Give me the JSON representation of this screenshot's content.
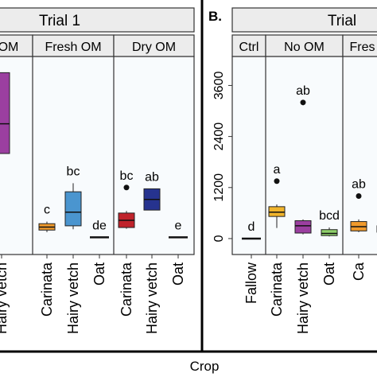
{
  "x_axis_title": "Crop",
  "chart_data": [
    {
      "type": "boxplot",
      "panel_label": "",
      "strip_title": "Trial 1",
      "facets": [
        {
          "name": "No OM",
          "shown_text": "OM",
          "categories": [
            "Hairy vetch"
          ],
          "boxes": [
            {
              "category": "Hairy vetch",
              "color": "#9b3fa0",
              "q1": 2000,
              "median": 2700,
              "q3": 3900,
              "letter": "",
              "shown_label": "Hairy vetch"
            }
          ]
        },
        {
          "name": "Fresh OM",
          "categories": [
            "Carinata",
            "Hairy vetch",
            "Oat"
          ],
          "boxes": [
            {
              "category": "Carinata",
              "color": "#f09a2c",
              "whisker_low": 150,
              "q1": 200,
              "median": 270,
              "q3": 350,
              "whisker_high": 400,
              "letter": "c"
            },
            {
              "category": "Hairy vetch",
              "color": "#4a95cf",
              "whisker_low": 220,
              "q1": 300,
              "median": 620,
              "q3": 1100,
              "whisker_high": 1300,
              "letter": "bc"
            },
            {
              "category": "Oat",
              "color": "#333333",
              "median": 30,
              "flat": true,
              "letter": "de"
            }
          ]
        },
        {
          "name": "Dry OM",
          "categories": [
            "Carinata",
            "Hairy vetch",
            "Oat"
          ],
          "boxes": [
            {
              "category": "Carinata",
              "color": "#c0232b",
              "whisker_low": 230,
              "q1": 260,
              "median": 430,
              "q3": 600,
              "whisker_high": 650,
              "outlier": 1200,
              "letter": "bc"
            },
            {
              "category": "Hairy vetch",
              "color": "#26338f",
              "q1": 670,
              "median": 920,
              "q3": 1170,
              "letter": "ab"
            },
            {
              "category": "Oat",
              "color": "#333333",
              "median": 30,
              "flat": true,
              "letter": "e"
            }
          ]
        }
      ]
    },
    {
      "type": "boxplot",
      "panel_label": "B.",
      "strip_title": "Trial",
      "y_ticks": [
        0,
        1200,
        2400,
        3600
      ],
      "ylim": [
        -300,
        4300
      ],
      "facets": [
        {
          "name": "Ctrl",
          "categories": [
            "Fallow"
          ],
          "boxes": [
            {
              "category": "Fallow",
              "color": "#333333",
              "median": 0,
              "flat": true,
              "letter": "d"
            }
          ]
        },
        {
          "name": "No OM",
          "categories": [
            "Carinata",
            "Hairy vetch",
            "Oat"
          ],
          "boxes": [
            {
              "category": "Carinata",
              "color": "#f0b42c",
              "whisker_low": 250,
              "q1": 520,
              "median": 620,
              "q3": 750,
              "whisker_high": 800,
              "outlier": 1350,
              "letter": "a"
            },
            {
              "category": "Hairy vetch",
              "color": "#9b3fa0",
              "whisker_low": 100,
              "q1": 130,
              "median": 300,
              "q3": 420,
              "whisker_high": 450,
              "outlier": 3200,
              "letter": "ab"
            },
            {
              "category": "Oat",
              "color": "#8fd16b",
              "whisker_low": 50,
              "q1": 70,
              "median": 120,
              "q3": 210,
              "whisker_high": 260,
              "letter": "bcd"
            }
          ]
        },
        {
          "name": "Fresh OM",
          "shown_text": "Fres",
          "categories": [
            "Carinata",
            "Hairy vetch"
          ],
          "boxes": [
            {
              "category": "Carinata",
              "color": "#f09a2c",
              "whisker_low": 150,
              "q1": 180,
              "median": 280,
              "q3": 400,
              "whisker_high": 450,
              "outlier": 1000,
              "letter": "ab",
              "shown_label": "Ca"
            },
            {
              "category": "Hairy vetch",
              "color": "#4a95cf",
              "q1": 150,
              "median": 230,
              "q3": 300,
              "letter": "",
              "shown_label": "H"
            }
          ]
        }
      ]
    }
  ]
}
